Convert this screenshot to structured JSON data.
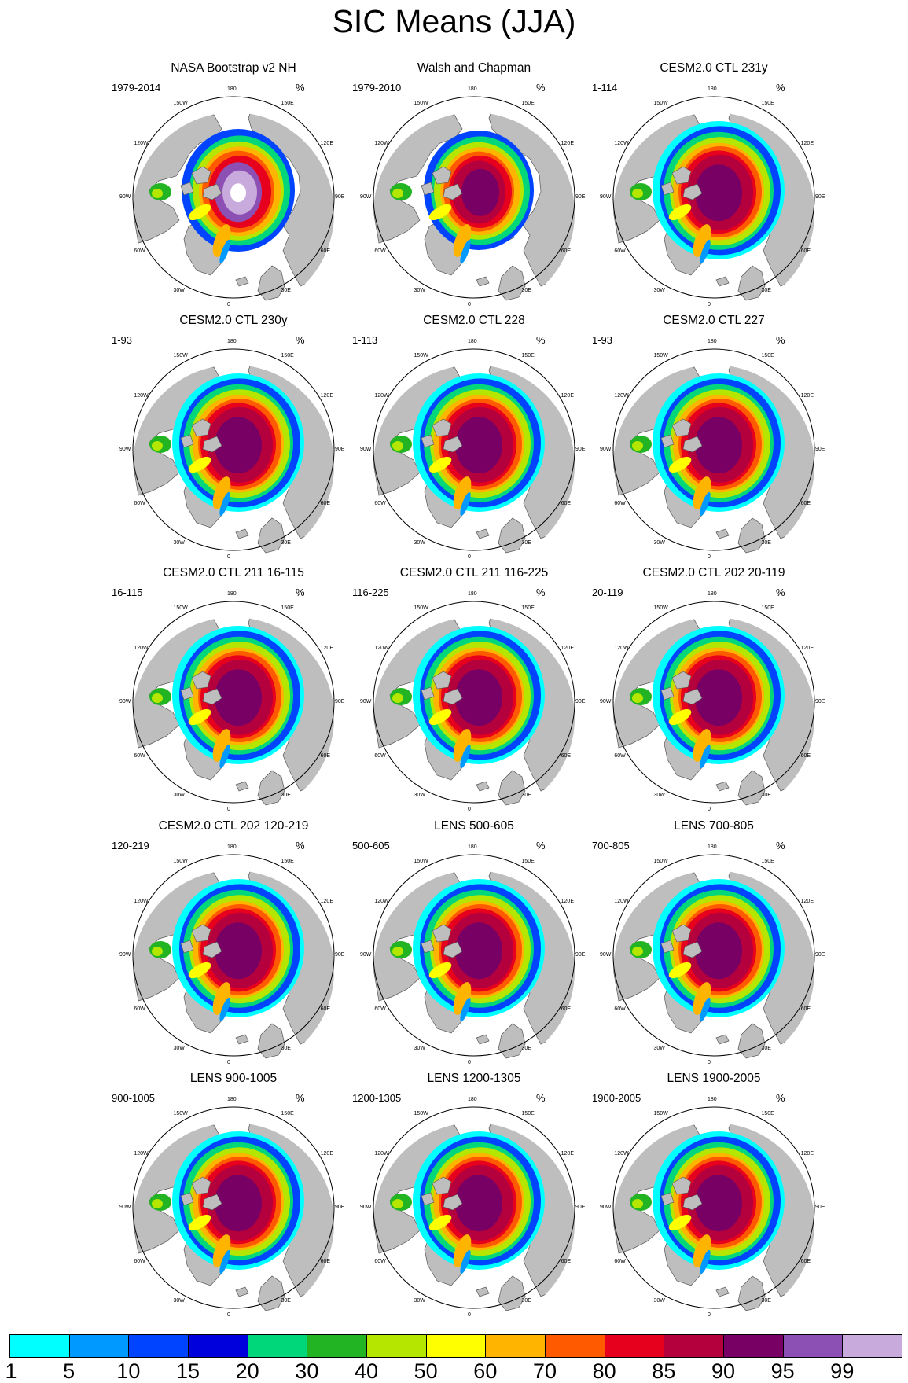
{
  "title": "SIC Means (JJA)",
  "units": "%",
  "lon_labels": [
    "180",
    "150E",
    "120E",
    "90E",
    "60E",
    "30E",
    "0",
    "30W",
    "60W",
    "90W",
    "120W",
    "150W"
  ],
  "panels": [
    {
      "title": "NASA Bootstrap v2 NH",
      "range": "1979-2014",
      "style": "obs1"
    },
    {
      "title": "Walsh and Chapman",
      "range": "1979-2010",
      "style": "obs2"
    },
    {
      "title": "CESM2.0 CTL 231y",
      "range": "1-114",
      "style": "model"
    },
    {
      "title": "CESM2.0 CTL 230y",
      "range": "1-93",
      "style": "model"
    },
    {
      "title": "CESM2.0 CTL 228",
      "range": "1-113",
      "style": "model"
    },
    {
      "title": "CESM2.0 CTL 227",
      "range": "1-93",
      "style": "model"
    },
    {
      "title": "CESM2.0 CTL 211 16-115",
      "range": "16-115",
      "style": "model"
    },
    {
      "title": "CESM2.0 CTL 211 116-225",
      "range": "116-225",
      "style": "model"
    },
    {
      "title": "CESM2.0 CTL 202 20-119",
      "range": "20-119",
      "style": "model"
    },
    {
      "title": "CESM2.0 CTL 202 120-219",
      "range": "120-219",
      "style": "model"
    },
    {
      "title": "LENS 500-605",
      "range": "500-605",
      "style": "model"
    },
    {
      "title": "LENS 700-805",
      "range": "700-805",
      "style": "model"
    },
    {
      "title": "LENS 900-1005",
      "range": "900-1005",
      "style": "model"
    },
    {
      "title": "LENS 1200-1305",
      "range": "1200-1305",
      "style": "model"
    },
    {
      "title": "LENS 1900-2005",
      "range": "1900-2005",
      "style": "model"
    }
  ],
  "colorbar": {
    "labels": [
      "1",
      "5",
      "10",
      "15",
      "20",
      "30",
      "40",
      "50",
      "60",
      "70",
      "80",
      "85",
      "90",
      "95",
      "99"
    ],
    "colors": [
      "#00ffff",
      "#0099ff",
      "#0044ff",
      "#0000dd",
      "#00d67a",
      "#22b422",
      "#b4e600",
      "#ffff00",
      "#ffb400",
      "#ff5a00",
      "#e6001e",
      "#b4003c",
      "#780064",
      "#8c50b4",
      "#c8aadc"
    ]
  },
  "chart_data": {
    "type": "heatmap",
    "title": "SIC Means (JJA)",
    "variable": "Sea ice concentration",
    "units": "%",
    "projection": "north polar stereographic",
    "levels": [
      1,
      5,
      10,
      15,
      20,
      30,
      40,
      50,
      60,
      70,
      80,
      85,
      90,
      95,
      99
    ],
    "panels": [
      {
        "title": "NASA Bootstrap v2 NH",
        "period": "1979-2014"
      },
      {
        "title": "Walsh and Chapman",
        "period": "1979-2010"
      },
      {
        "title": "CESM2.0 CTL 231y",
        "period": "1-114"
      },
      {
        "title": "CESM2.0 CTL 230y",
        "period": "1-93"
      },
      {
        "title": "CESM2.0 CTL 228",
        "period": "1-113"
      },
      {
        "title": "CESM2.0 CTL 227",
        "period": "1-93"
      },
      {
        "title": "CESM2.0 CTL 211 16-115",
        "period": "16-115"
      },
      {
        "title": "CESM2.0 CTL 211 116-225",
        "period": "116-225"
      },
      {
        "title": "CESM2.0 CTL 202 20-119",
        "period": "20-119"
      },
      {
        "title": "CESM2.0 CTL 202 120-219",
        "period": "120-219"
      },
      {
        "title": "LENS 500-605",
        "period": "500-605"
      },
      {
        "title": "LENS 700-805",
        "period": "700-805"
      },
      {
        "title": "LENS 900-1005",
        "period": "900-1005"
      },
      {
        "title": "LENS 1200-1305",
        "period": "1200-1305"
      },
      {
        "title": "LENS 1900-2005",
        "period": "1900-2005"
      }
    ]
  }
}
